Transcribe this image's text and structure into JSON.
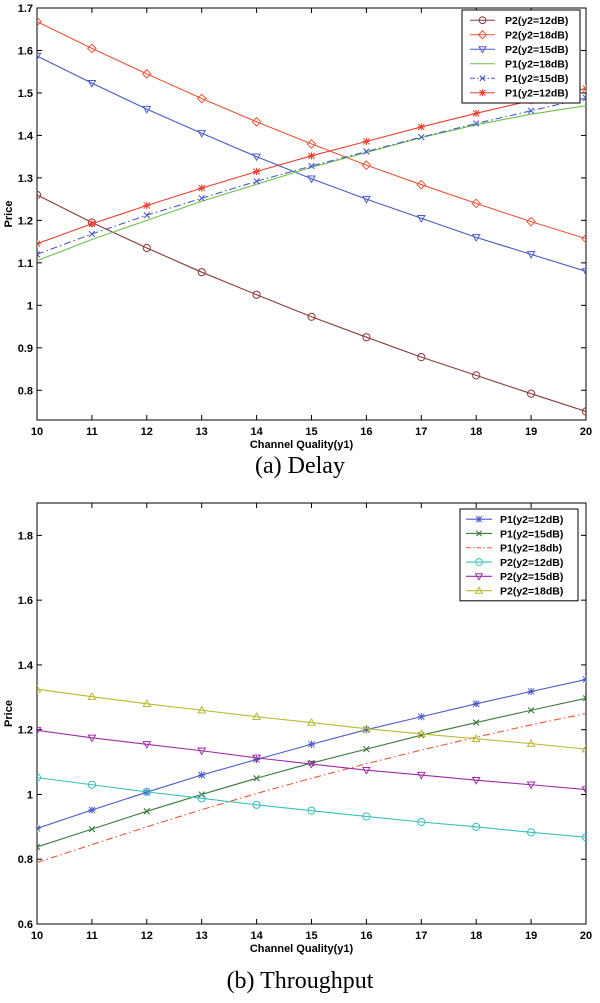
{
  "chart_data": [
    {
      "type": "line",
      "caption": "(a)  Delay",
      "xlabel": "Channel Quality(y1)",
      "ylabel": "Price",
      "xlim": [
        10,
        20
      ],
      "ylim": [
        0.73,
        1.7
      ],
      "x": [
        10,
        11,
        12,
        13,
        14,
        15,
        16,
        17,
        18,
        19,
        20
      ],
      "xticks": [
        10,
        11,
        12,
        13,
        14,
        15,
        16,
        17,
        18,
        19,
        20
      ],
      "yticks": [
        0.8,
        0.9,
        1,
        1.1,
        1.2,
        1.3,
        1.4,
        1.5,
        1.6,
        1.7
      ],
      "legend_position": "top-right",
      "series": [
        {
          "name": "P2(y2=12dB)",
          "color": "#8B3A3A",
          "marker": "circle",
          "dash": "solid",
          "values": [
            1.26,
            1.195,
            1.135,
            1.078,
            1.025,
            0.973,
            0.925,
            0.878,
            0.835,
            0.792,
            0.75
          ]
        },
        {
          "name": "P2(y2=18dB)",
          "color": "#E8553A",
          "marker": "diamond",
          "dash": "solid",
          "values": [
            1.668,
            1.605,
            1.545,
            1.487,
            1.432,
            1.38,
            1.33,
            1.284,
            1.24,
            1.197,
            1.157
          ]
        },
        {
          "name": "P2(y2=15dB)",
          "color": "#4A5AC8",
          "marker": "triangle-down",
          "dash": "solid",
          "values": [
            1.587,
            1.523,
            1.462,
            1.405,
            1.35,
            1.298,
            1.25,
            1.205,
            1.16,
            1.12,
            1.08
          ]
        },
        {
          "name": "P1(y2=18dB)",
          "color": "#6CC04A",
          "marker": "none",
          "dash": "solid",
          "values": [
            1.105,
            1.155,
            1.2,
            1.245,
            1.285,
            1.325,
            1.36,
            1.395,
            1.425,
            1.45,
            1.47
          ]
        },
        {
          "name": "P1(y2=15dB)",
          "color": "#4A5AC8",
          "marker": "x",
          "dash": "dashdot",
          "values": [
            1.12,
            1.168,
            1.212,
            1.252,
            1.292,
            1.328,
            1.362,
            1.396,
            1.428,
            1.458,
            1.488
          ]
        },
        {
          "name": "P1(y2=12dB)",
          "color": "#E8402E",
          "marker": "star",
          "dash": "solid",
          "values": [
            1.145,
            1.192,
            1.235,
            1.276,
            1.315,
            1.352,
            1.386,
            1.42,
            1.452,
            1.482,
            1.51
          ]
        }
      ]
    },
    {
      "type": "line",
      "caption": "(b)  Throughput",
      "xlabel": "Channel Quality(y1)",
      "ylabel": "Price",
      "xlim": [
        10,
        20
      ],
      "ylim": [
        0.6,
        1.9
      ],
      "x": [
        10,
        11,
        12,
        13,
        14,
        15,
        16,
        17,
        18,
        19,
        20
      ],
      "xticks": [
        10,
        11,
        12,
        13,
        14,
        15,
        16,
        17,
        18,
        19,
        20
      ],
      "yticks": [
        0.6,
        0.8,
        1,
        1.2,
        1.4,
        1.6,
        1.8
      ],
      "legend_position": "top-right",
      "series": [
        {
          "name": "P1(y2=12dB)",
          "color": "#4A5AC8",
          "marker": "star",
          "dash": "solid",
          "values": [
            0.895,
            0.952,
            1.007,
            1.06,
            1.108,
            1.155,
            1.2,
            1.24,
            1.28,
            1.318,
            1.355
          ]
        },
        {
          "name": "P1(y2=15dB)",
          "color": "#3A7A3A",
          "marker": "x",
          "dash": "solid",
          "values": [
            0.838,
            0.893,
            0.948,
            1.0,
            1.05,
            1.097,
            1.14,
            1.183,
            1.222,
            1.26,
            1.297
          ]
        },
        {
          "name": "P1(y2=18db)",
          "color": "#E8553A",
          "marker": "none",
          "dash": "dashdot",
          "values": [
            0.79,
            0.845,
            0.9,
            0.953,
            1.003,
            1.05,
            1.095,
            1.137,
            1.177,
            1.215,
            1.25
          ]
        },
        {
          "name": "P2(y2=12dB)",
          "color": "#3ABFBF",
          "marker": "circle",
          "dash": "solid",
          "values": [
            1.052,
            1.03,
            1.008,
            0.988,
            0.968,
            0.95,
            0.932,
            0.915,
            0.9,
            0.883,
            0.868
          ]
        },
        {
          "name": "P2(y2=15dB)",
          "color": "#A02AA8",
          "marker": "triangle-down",
          "dash": "solid",
          "values": [
            1.198,
            1.175,
            1.155,
            1.135,
            1.113,
            1.094,
            1.075,
            1.06,
            1.044,
            1.03,
            1.015
          ]
        },
        {
          "name": "P2(y2=18dB)",
          "color": "#B8B832",
          "marker": "triangle-up",
          "dash": "solid",
          "values": [
            1.325,
            1.302,
            1.28,
            1.26,
            1.24,
            1.222,
            1.203,
            1.187,
            1.172,
            1.157,
            1.14
          ]
        }
      ]
    }
  ]
}
